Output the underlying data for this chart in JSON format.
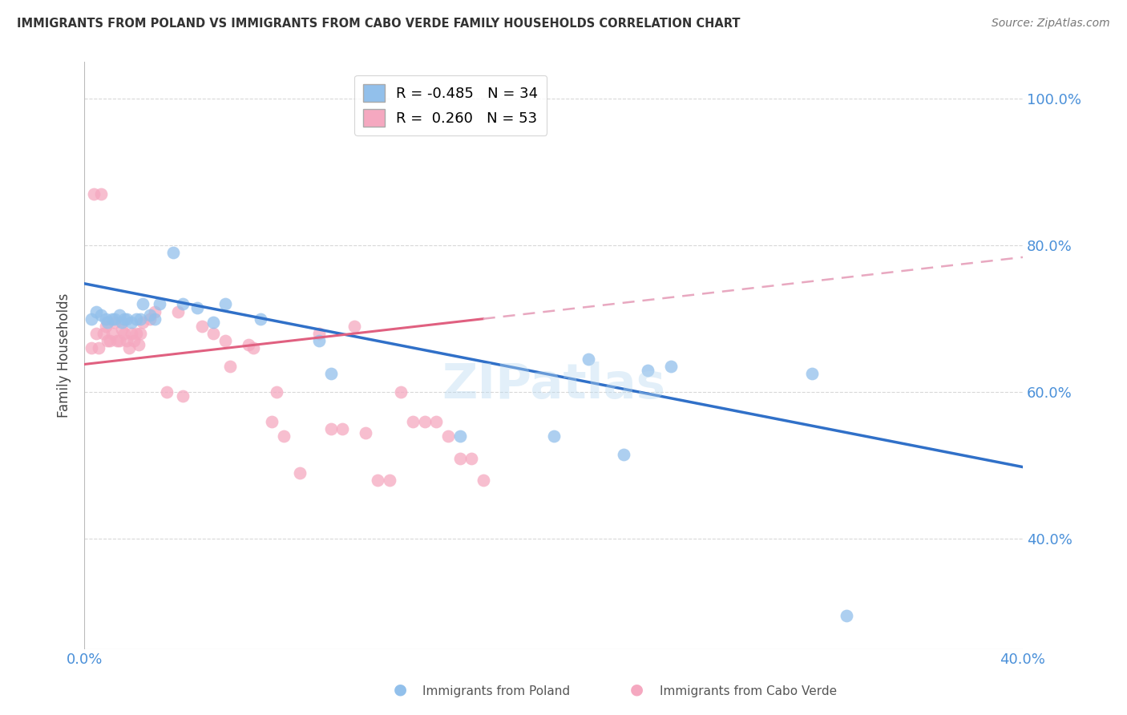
{
  "title": "IMMIGRANTS FROM POLAND VS IMMIGRANTS FROM CABO VERDE FAMILY HOUSEHOLDS CORRELATION CHART",
  "source": "Source: ZipAtlas.com",
  "ylabel": "Family Households",
  "legend_blue_r": "R = -0.485",
  "legend_blue_n": "N = 34",
  "legend_pink_r": "R =  0.260",
  "legend_pink_n": "N = 53",
  "legend_label_blue": "Immigrants from Poland",
  "legend_label_pink": "Immigrants from Cabo Verde",
  "xlim": [
    0.0,
    0.4
  ],
  "ylim": [
    0.25,
    1.05
  ],
  "yticks": [
    0.4,
    0.6,
    0.8,
    1.0
  ],
  "ytick_labels": [
    "40.0%",
    "60.0%",
    "80.0%",
    "100.0%"
  ],
  "blue_color": "#92c0eb",
  "pink_color": "#f5a8c0",
  "blue_line_color": "#3070c8",
  "pink_line_color": "#e06080",
  "pink_dash_color": "#e8a8c0",
  "background_color": "#ffffff",
  "grid_color": "#d8d8d8",
  "watermark": "ZIPatlas",
  "title_color": "#333333",
  "source_color": "#777777",
  "axis_label_color": "#4a90d9",
  "blue_scatter_x": [
    0.003,
    0.005,
    0.007,
    0.009,
    0.01,
    0.012,
    0.013,
    0.015,
    0.016,
    0.017,
    0.018,
    0.02,
    0.022,
    0.024,
    0.025,
    0.028,
    0.03,
    0.032,
    0.038,
    0.042,
    0.048,
    0.055,
    0.06,
    0.075,
    0.1,
    0.105,
    0.16,
    0.2,
    0.215,
    0.23,
    0.24,
    0.25,
    0.31,
    0.325
  ],
  "blue_scatter_y": [
    0.7,
    0.71,
    0.705,
    0.7,
    0.695,
    0.7,
    0.7,
    0.705,
    0.695,
    0.7,
    0.7,
    0.695,
    0.7,
    0.7,
    0.72,
    0.705,
    0.7,
    0.72,
    0.79,
    0.72,
    0.715,
    0.695,
    0.72,
    0.7,
    0.67,
    0.625,
    0.54,
    0.54,
    0.645,
    0.515,
    0.63,
    0.635,
    0.625,
    0.295
  ],
  "pink_scatter_x": [
    0.003,
    0.004,
    0.005,
    0.006,
    0.007,
    0.008,
    0.009,
    0.01,
    0.011,
    0.012,
    0.013,
    0.014,
    0.015,
    0.016,
    0.017,
    0.018,
    0.019,
    0.02,
    0.021,
    0.022,
    0.023,
    0.024,
    0.025,
    0.028,
    0.03,
    0.035,
    0.04,
    0.042,
    0.05,
    0.055,
    0.06,
    0.062,
    0.07,
    0.072,
    0.08,
    0.082,
    0.085,
    0.092,
    0.1,
    0.105,
    0.11,
    0.115,
    0.12,
    0.125,
    0.13,
    0.135,
    0.14,
    0.145,
    0.15,
    0.155,
    0.16,
    0.165,
    0.17
  ],
  "pink_scatter_y": [
    0.66,
    0.87,
    0.68,
    0.66,
    0.87,
    0.68,
    0.69,
    0.67,
    0.67,
    0.68,
    0.695,
    0.67,
    0.67,
    0.685,
    0.68,
    0.67,
    0.66,
    0.68,
    0.67,
    0.68,
    0.665,
    0.68,
    0.695,
    0.7,
    0.71,
    0.6,
    0.71,
    0.595,
    0.69,
    0.68,
    0.67,
    0.635,
    0.665,
    0.66,
    0.56,
    0.6,
    0.54,
    0.49,
    0.68,
    0.55,
    0.55,
    0.69,
    0.545,
    0.48,
    0.48,
    0.6,
    0.56,
    0.56,
    0.56,
    0.54,
    0.51,
    0.51,
    0.48
  ],
  "blue_line_x0": 0.0,
  "blue_line_y0": 0.748,
  "blue_line_x1": 0.4,
  "blue_line_y1": 0.498,
  "pink_line_solid_x0": 0.0,
  "pink_line_solid_y0": 0.638,
  "pink_line_solid_x1": 0.17,
  "pink_line_solid_y1": 0.7,
  "pink_line_dash_x0": 0.17,
  "pink_line_dash_y0": 0.7,
  "pink_line_dash_x1": 0.4,
  "pink_line_dash_y1": 0.784
}
